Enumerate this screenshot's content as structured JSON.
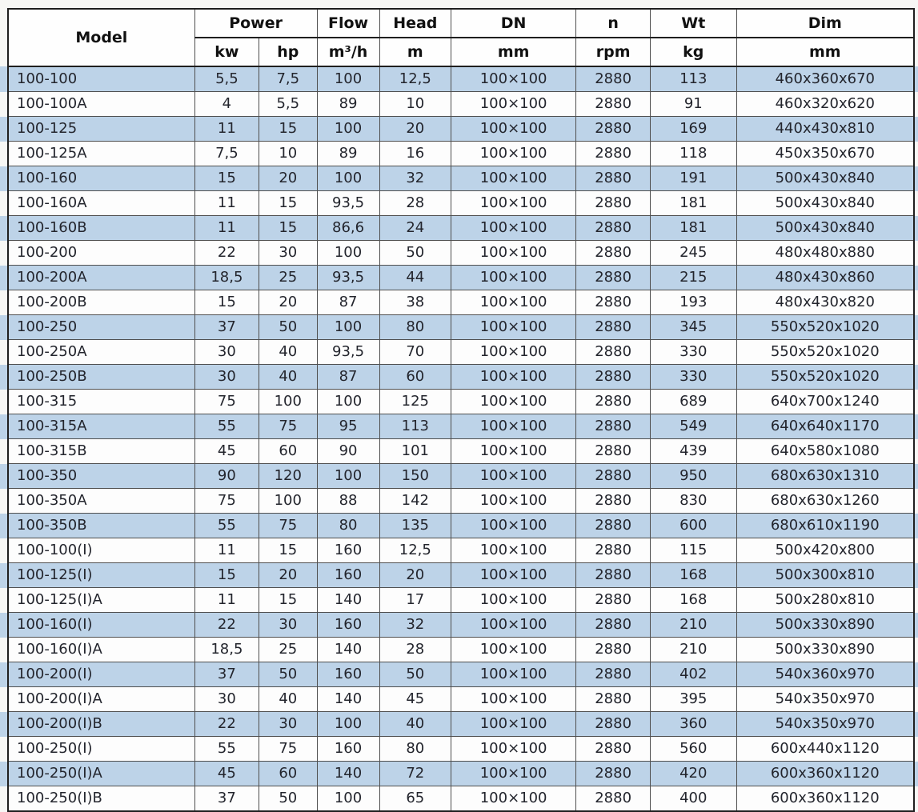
{
  "colors": {
    "row_stripe": "#bdd3e8",
    "row_plain": "#fdfdfd",
    "grid_line": "#4f4f4f",
    "outer_border": "#1f1f1f",
    "text": "#23252d",
    "header_text": "#111111",
    "page_background": "#f7f7f5"
  },
  "table": {
    "header": {
      "model": "Model",
      "power": "Power",
      "flow": "Flow",
      "head": "Head",
      "dn": "DN",
      "n": "n",
      "wt": "Wt",
      "dim": "Dim",
      "unit_kw": "kw",
      "unit_hp": "hp",
      "unit_flow": "m³/h",
      "unit_head": "m",
      "unit_dn": "mm",
      "unit_n": "rpm",
      "unit_wt": "kg",
      "unit_dim": "mm"
    },
    "rows": [
      {
        "model": "100-100",
        "kw": "5,5",
        "hp": "7,5",
        "flow": "100",
        "head": "12,5",
        "dn": "100×100",
        "n": "2880",
        "wt": "113",
        "dim": "460x360x670"
      },
      {
        "model": "100-100A",
        "kw": "4",
        "hp": "5,5",
        "flow": "89",
        "head": "10",
        "dn": "100×100",
        "n": "2880",
        "wt": "91",
        "dim": "460x320x620"
      },
      {
        "model": "100-125",
        "kw": "11",
        "hp": "15",
        "flow": "100",
        "head": "20",
        "dn": "100×100",
        "n": "2880",
        "wt": "169",
        "dim": "440x430x810"
      },
      {
        "model": "100-125A",
        "kw": "7,5",
        "hp": "10",
        "flow": "89",
        "head": "16",
        "dn": "100×100",
        "n": "2880",
        "wt": "118",
        "dim": "450x350x670"
      },
      {
        "model": "100-160",
        "kw": "15",
        "hp": "20",
        "flow": "100",
        "head": "32",
        "dn": "100×100",
        "n": "2880",
        "wt": "191",
        "dim": "500x430x840"
      },
      {
        "model": "100-160A",
        "kw": "11",
        "hp": "15",
        "flow": "93,5",
        "head": "28",
        "dn": "100×100",
        "n": "2880",
        "wt": "181",
        "dim": "500x430x840"
      },
      {
        "model": "100-160B",
        "kw": "11",
        "hp": "15",
        "flow": "86,6",
        "head": "24",
        "dn": "100×100",
        "n": "2880",
        "wt": "181",
        "dim": "500x430x840"
      },
      {
        "model": "100-200",
        "kw": "22",
        "hp": "30",
        "flow": "100",
        "head": "50",
        "dn": "100×100",
        "n": "2880",
        "wt": "245",
        "dim": "480x480x880"
      },
      {
        "model": "100-200A",
        "kw": "18,5",
        "hp": "25",
        "flow": "93,5",
        "head": "44",
        "dn": "100×100",
        "n": "2880",
        "wt": "215",
        "dim": "480x430x860"
      },
      {
        "model": "100-200B",
        "kw": "15",
        "hp": "20",
        "flow": "87",
        "head": "38",
        "dn": "100×100",
        "n": "2880",
        "wt": "193",
        "dim": "480x430x820"
      },
      {
        "model": "100-250",
        "kw": "37",
        "hp": "50",
        "flow": "100",
        "head": "80",
        "dn": "100×100",
        "n": "2880",
        "wt": "345",
        "dim": "550x520x1020"
      },
      {
        "model": "100-250A",
        "kw": "30",
        "hp": "40",
        "flow": "93,5",
        "head": "70",
        "dn": "100×100",
        "n": "2880",
        "wt": "330",
        "dim": "550x520x1020"
      },
      {
        "model": "100-250B",
        "kw": "30",
        "hp": "40",
        "flow": "87",
        "head": "60",
        "dn": "100×100",
        "n": "2880",
        "wt": "330",
        "dim": "550x520x1020"
      },
      {
        "model": "100-315",
        "kw": "75",
        "hp": "100",
        "flow": "100",
        "head": "125",
        "dn": "100×100",
        "n": "2880",
        "wt": "689",
        "dim": "640x700x1240"
      },
      {
        "model": "100-315A",
        "kw": "55",
        "hp": "75",
        "flow": "95",
        "head": "113",
        "dn": "100×100",
        "n": "2880",
        "wt": "549",
        "dim": "640x640x1170"
      },
      {
        "model": "100-315B",
        "kw": "45",
        "hp": "60",
        "flow": "90",
        "head": "101",
        "dn": "100×100",
        "n": "2880",
        "wt": "439",
        "dim": "640x580x1080"
      },
      {
        "model": "100-350",
        "kw": "90",
        "hp": "120",
        "flow": "100",
        "head": "150",
        "dn": "100×100",
        "n": "2880",
        "wt": "950",
        "dim": "680x630x1310"
      },
      {
        "model": "100-350A",
        "kw": "75",
        "hp": "100",
        "flow": "88",
        "head": "142",
        "dn": "100×100",
        "n": "2880",
        "wt": "830",
        "dim": "680x630x1260"
      },
      {
        "model": "100-350B",
        "kw": "55",
        "hp": "75",
        "flow": "80",
        "head": "135",
        "dn": "100×100",
        "n": "2880",
        "wt": "600",
        "dim": "680x610x1190"
      },
      {
        "model": "100-100(I)",
        "kw": "11",
        "hp": "15",
        "flow": "160",
        "head": "12,5",
        "dn": "100×100",
        "n": "2880",
        "wt": "115",
        "dim": "500x420x800"
      },
      {
        "model": "100-125(I)",
        "kw": "15",
        "hp": "20",
        "flow": "160",
        "head": "20",
        "dn": "100×100",
        "n": "2880",
        "wt": "168",
        "dim": "500x300x810"
      },
      {
        "model": "100-125(I)A",
        "kw": "11",
        "hp": "15",
        "flow": "140",
        "head": "17",
        "dn": "100×100",
        "n": "2880",
        "wt": "168",
        "dim": "500x280x810"
      },
      {
        "model": "100-160(I)",
        "kw": "22",
        "hp": "30",
        "flow": "160",
        "head": "32",
        "dn": "100×100",
        "n": "2880",
        "wt": "210",
        "dim": "500x330x890"
      },
      {
        "model": "100-160(I)A",
        "kw": "18,5",
        "hp": "25",
        "flow": "140",
        "head": "28",
        "dn": "100×100",
        "n": "2880",
        "wt": "210",
        "dim": "500x330x890"
      },
      {
        "model": "100-200(I)",
        "kw": "37",
        "hp": "50",
        "flow": "160",
        "head": "50",
        "dn": "100×100",
        "n": "2880",
        "wt": "402",
        "dim": "540x360x970"
      },
      {
        "model": "100-200(I)A",
        "kw": "30",
        "hp": "40",
        "flow": "140",
        "head": "45",
        "dn": "100×100",
        "n": "2880",
        "wt": "395",
        "dim": "540x350x970"
      },
      {
        "model": "100-200(I)B",
        "kw": "22",
        "hp": "30",
        "flow": "100",
        "head": "40",
        "dn": "100×100",
        "n": "2880",
        "wt": "360",
        "dim": "540x350x970"
      },
      {
        "model": "100-250(I)",
        "kw": "55",
        "hp": "75",
        "flow": "160",
        "head": "80",
        "dn": "100×100",
        "n": "2880",
        "wt": "560",
        "dim": "600x440x1120"
      },
      {
        "model": "100-250(I)A",
        "kw": "45",
        "hp": "60",
        "flow": "140",
        "head": "72",
        "dn": "100×100",
        "n": "2880",
        "wt": "420",
        "dim": "600x360x1120"
      },
      {
        "model": "100-250(I)B",
        "kw": "37",
        "hp": "50",
        "flow": "100",
        "head": "65",
        "dn": "100×100",
        "n": "2880",
        "wt": "400",
        "dim": "600x360x1120"
      }
    ]
  }
}
